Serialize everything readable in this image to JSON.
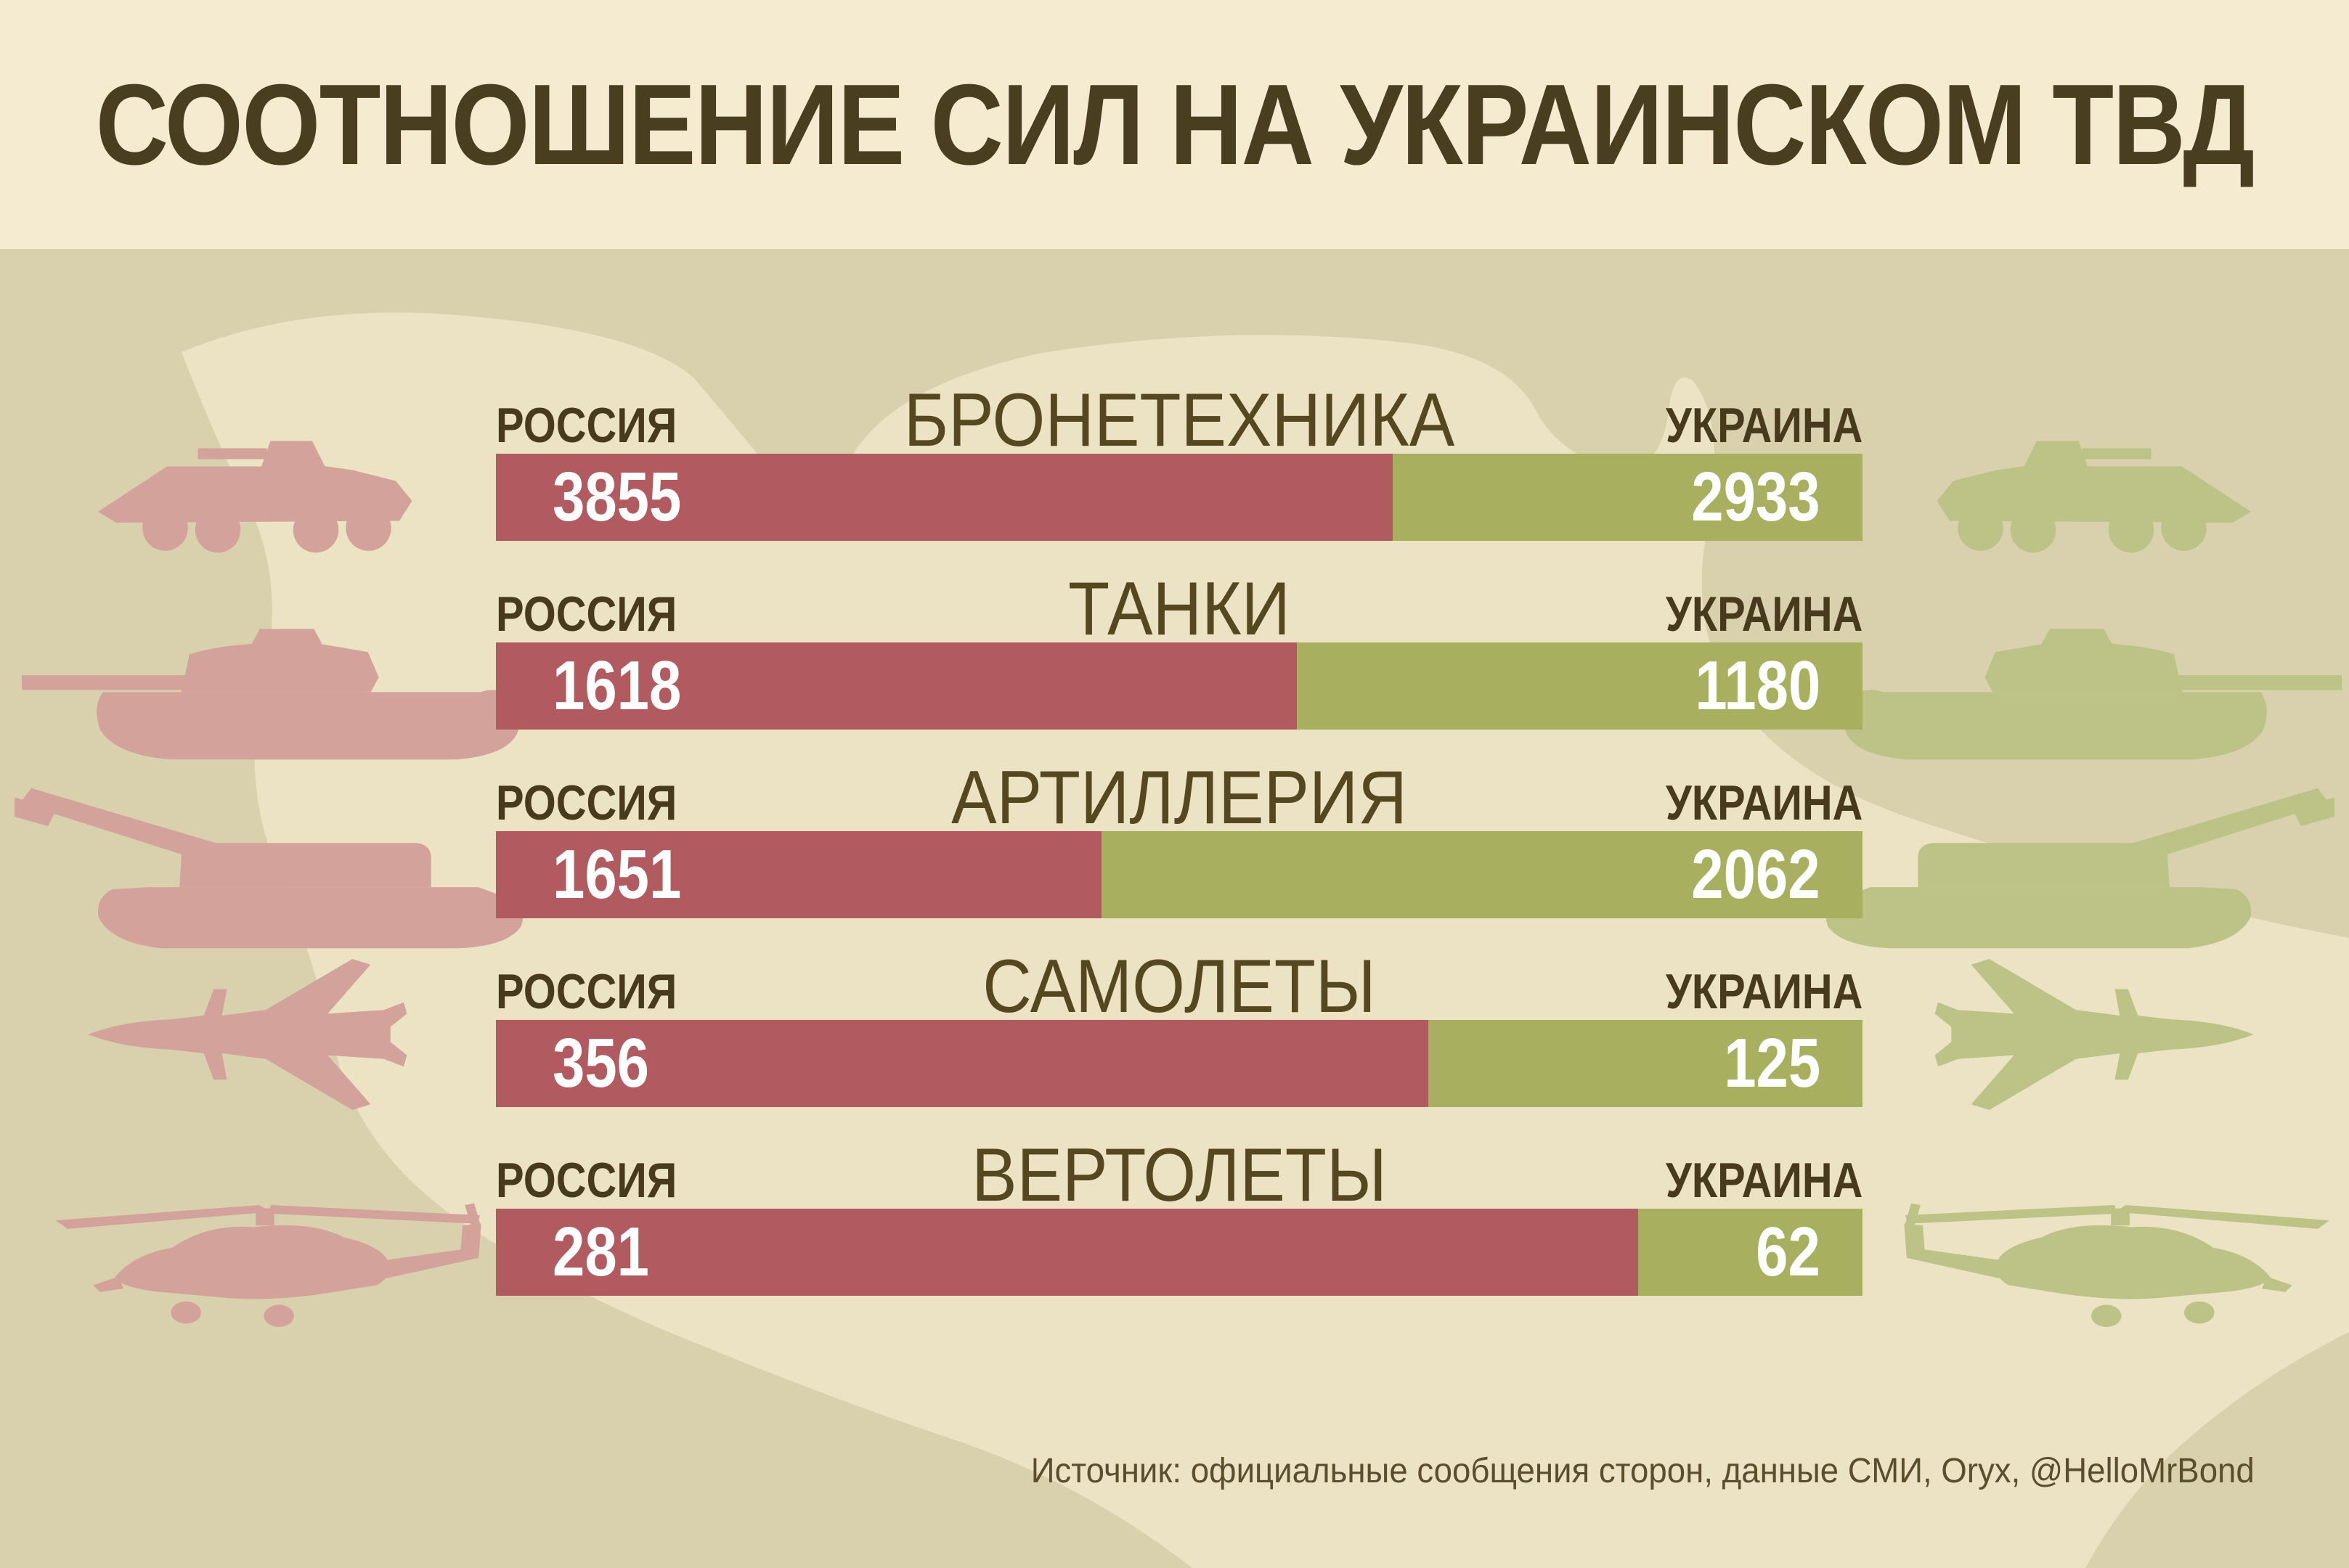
{
  "title": "СООТНОШЕНИЕ СИЛ НА УКРАИНСКОМ ТВД",
  "source_note": "Источник: официальные сообщения сторон, данные СМИ, Oryx, @HelloMrBond",
  "colors": {
    "header_background": "#f5ebd1",
    "page_background": "#d9d0ae",
    "map_fill": "#ece3c4",
    "russia_bar": "#b15b61",
    "ukraine_bar": "#a8b05f",
    "russia_silhouette": "#d3a29b",
    "ukraine_silhouette": "#bdc286",
    "heading_text": "#4a3e20",
    "value_text": "#ffffff"
  },
  "chart_data": {
    "type": "bar",
    "variant": "paired-horizontal-ratio",
    "title": "СООТНОШЕНИЕ СИЛ НА УКРАИНСКОМ ТВД",
    "left_series": "РОССИЯ",
    "right_series": "УКРАИНА",
    "categories": [
      "БРОНЕТЕХНИКА",
      "ТАНКИ",
      "АРТИЛЛЕРИЯ",
      "САМОЛЕТЫ",
      "ВЕРТОЛЕТЫ"
    ],
    "series": [
      {
        "name": "РОССИЯ",
        "values": [
          3855,
          1618,
          1651,
          356,
          281
        ]
      },
      {
        "name": "УКРАИНА",
        "values": [
          2933,
          1180,
          2062,
          125,
          62
        ]
      }
    ],
    "rows": [
      {
        "category": "БРОНЕТЕХНИКА",
        "russia": "3855",
        "ukraine": "2933",
        "russia_bar_pct": 65.6,
        "icon": "apc-icon"
      },
      {
        "category": "ТАНКИ",
        "russia": "1618",
        "ukraine": "1180",
        "russia_bar_pct": 58.6,
        "icon": "tank-icon"
      },
      {
        "category": "АРТИЛЛЕРИЯ",
        "russia": "1651",
        "ukraine": "2062",
        "russia_bar_pct": 44.3,
        "icon": "howitzer-icon"
      },
      {
        "category": "САМОЛЕТЫ",
        "russia": "356",
        "ukraine": "125",
        "russia_bar_pct": 68.2,
        "icon": "jet-icon"
      },
      {
        "category": "ВЕРТОЛЕТЫ",
        "russia": "281",
        "ukraine": "62",
        "russia_bar_pct": 83.6,
        "icon": "helicopter-icon"
      }
    ],
    "legend_position": "above-each-bar",
    "grid": false,
    "annotations": "values printed inside bar segments"
  }
}
